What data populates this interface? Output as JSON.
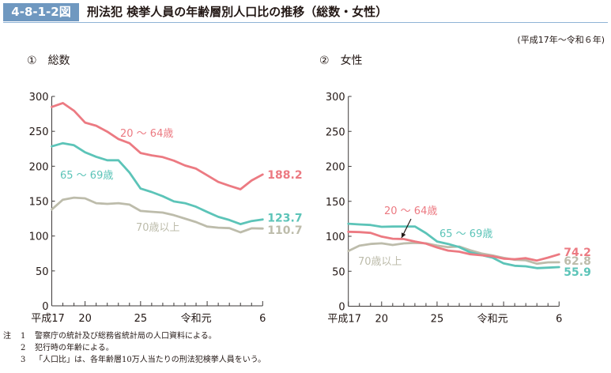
{
  "header": {
    "figure_number": "4-8-1-2図",
    "title": "刑法犯 検挙人員の年齢層別人口比の推移（総数・女性）",
    "period": "(平成17年〜令和６年)"
  },
  "notes": {
    "lead": "注",
    "items": [
      {
        "num": "1",
        "text": "警察庁の統計及び総務省統計局の人口資料による。"
      },
      {
        "num": "2",
        "text": "犯行時の年齢による。"
      },
      {
        "num": "3",
        "text": "「人口比」は、各年齢層10万人当たりの刑法犯検挙人員をいう。"
      }
    ]
  },
  "colors": {
    "age_20_64": "#ec7a82",
    "age_65_69": "#5cc4b8",
    "age_70_plus": "#bdbcab",
    "axis": "#3e3a39"
  },
  "chart_data": [
    {
      "type": "line",
      "panel_num": "①",
      "title": "総数",
      "xlabel": "",
      "ylabel": "",
      "x": [
        "平成17",
        "18",
        "19",
        "20",
        "21",
        "22",
        "23",
        "24",
        "25",
        "26",
        "27",
        "28",
        "29",
        "30",
        "令和元",
        "2",
        "3",
        "4",
        "5",
        "6"
      ],
      "x_tick_labels": [
        {
          "index": 0,
          "label": "平成17"
        },
        {
          "index": 3,
          "label": "20"
        },
        {
          "index": 8,
          "label": "25"
        },
        {
          "index": 14,
          "label": "令和元"
        },
        {
          "index": 19,
          "label": "6"
        }
      ],
      "ylim": [
        0,
        300
      ],
      "y_ticks": [
        0,
        50,
        100,
        150,
        200,
        250,
        300
      ],
      "grid": false,
      "series": [
        {
          "name": "20〜64歳",
          "label": "20 ～ 64歳",
          "color_key": "age_20_64",
          "values": [
            285,
            290.5,
            279.5,
            262.5,
            258,
            249.5,
            239,
            233,
            219,
            215.5,
            213,
            208,
            201,
            196.5,
            187,
            177.5,
            172,
            167,
            179.5,
            188.2
          ],
          "end_label": "188.2"
        },
        {
          "name": "65〜69歳",
          "label": "65 ～ 69歳",
          "color_key": "age_65_69",
          "values": [
            228.5,
            233,
            230,
            220,
            213.5,
            208.5,
            208.5,
            191,
            168,
            163,
            157,
            149.5,
            147,
            142,
            134.5,
            127.5,
            123,
            117,
            121.5,
            123.7
          ],
          "end_label": "123.7"
        },
        {
          "name": "70歳以上",
          "label": "70歳以上",
          "color_key": "age_70_plus",
          "values": [
            138,
            152,
            155,
            154,
            147,
            146,
            147,
            145,
            136,
            134.7,
            133.6,
            129.8,
            125,
            120,
            113.6,
            112,
            111.3,
            105.3,
            111,
            110.7
          ],
          "end_label": "110.7"
        }
      ]
    },
    {
      "type": "line",
      "panel_num": "②",
      "title": "女性",
      "xlabel": "",
      "ylabel": "",
      "x": [
        "平成17",
        "18",
        "19",
        "20",
        "21",
        "22",
        "23",
        "24",
        "25",
        "26",
        "27",
        "28",
        "29",
        "30",
        "令和元",
        "2",
        "3",
        "4",
        "5",
        "6"
      ],
      "x_tick_labels": [
        {
          "index": 0,
          "label": "平成17"
        },
        {
          "index": 3,
          "label": "20"
        },
        {
          "index": 8,
          "label": "25"
        },
        {
          "index": 14,
          "label": "令和元"
        },
        {
          "index": 19,
          "label": "6"
        }
      ],
      "ylim": [
        0,
        300
      ],
      "y_ticks": [
        0,
        50,
        100,
        150,
        200,
        250,
        300
      ],
      "grid": false,
      "series": [
        {
          "name": "20〜64歳",
          "label": "20 ～ 64歳",
          "color_key": "age_20_64",
          "values": [
            106.4,
            106,
            104.9,
            99.5,
            96.5,
            96,
            92.5,
            89.5,
            84,
            79.5,
            78,
            74.4,
            72.9,
            71.4,
            68,
            67.2,
            68.7,
            65.3,
            69.5,
            74.2
          ],
          "end_label": "74.2",
          "annotation": "arrow"
        },
        {
          "name": "65〜69歳",
          "label": "65 ～ 69歳",
          "color_key": "age_65_69",
          "values": [
            118,
            117,
            116.2,
            113.6,
            113.9,
            114,
            114,
            104.5,
            92.5,
            89,
            84.5,
            77,
            73.2,
            69.5,
            61.2,
            57.9,
            57.1,
            54.5,
            55.1,
            55.9
          ],
          "end_label": "55.9"
        },
        {
          "name": "70歳以上",
          "label": "70歳以上",
          "color_key": "age_70_plus",
          "values": [
            79,
            86.5,
            89,
            90,
            87.6,
            89.8,
            90.6,
            90,
            86.8,
            84.5,
            85.3,
            80,
            75.5,
            72.5,
            69.2,
            66.4,
            65.7,
            60.8,
            62.7,
            62.8
          ],
          "end_label": "62.8"
        }
      ]
    }
  ]
}
